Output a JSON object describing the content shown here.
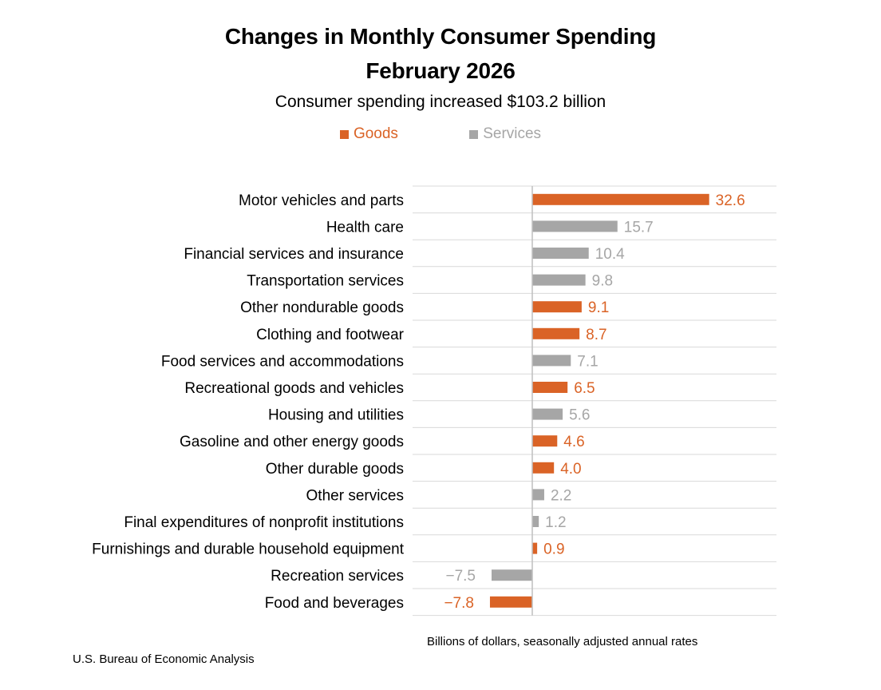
{
  "title_line1": "Changes in Monthly Consumer Spending",
  "title_line2": "February 2026",
  "subtitle": "Consumer spending increased $103.2 billion",
  "colors": {
    "goods": "#DA6326",
    "services": "#A6A6A6",
    "grid": "#D9D9D9",
    "axis": "#BFBFBF"
  },
  "legend": [
    {
      "label": "Goods",
      "key": "goods"
    },
    {
      "label": "Services",
      "key": "services"
    }
  ],
  "chart_data": {
    "type": "bar",
    "orientation": "horizontal",
    "title": "Changes in Monthly Consumer Spending February 2026",
    "subtitle": "Consumer spending increased $103.2 billion",
    "xlabel": "Billions of dollars, seasonally adjusted annual rates",
    "xlim": [
      -10,
      40
    ],
    "grid": true,
    "legend_position": "top-center",
    "categories": [
      "Motor vehicles and parts",
      "Health care",
      "Financial services and insurance",
      "Transportation services",
      "Other nondurable goods",
      "Clothing and footwear",
      "Food services and accommodations",
      "Recreational goods and vehicles",
      "Housing and utilities",
      "Gasoline and other energy goods",
      "Other durable goods",
      "Other services",
      "Final expenditures of nonprofit institutions",
      "Furnishings and durable household equipment",
      "Recreation services",
      "Food and beverages"
    ],
    "values": [
      32.6,
      15.7,
      10.4,
      9.8,
      9.1,
      8.7,
      7.1,
      6.5,
      5.6,
      4.6,
      4.0,
      2.2,
      1.2,
      0.9,
      -7.5,
      -7.8
    ],
    "labels": [
      "32.6",
      "15.7",
      "10.4",
      "9.8",
      "9.1",
      "8.7",
      "7.1",
      "6.5",
      "5.6",
      "4.6",
      "4.0",
      "2.2",
      "1.2",
      "0.9",
      "−7.5",
      "−7.8"
    ],
    "series_type": [
      "goods",
      "services",
      "services",
      "services",
      "goods",
      "goods",
      "services",
      "goods",
      "services",
      "goods",
      "goods",
      "services",
      "services",
      "goods",
      "services",
      "goods"
    ]
  },
  "footer": {
    "units": "Billions of dollars, seasonally adjusted annual rates",
    "source": "U.S. Bureau of Economic Analysis"
  }
}
